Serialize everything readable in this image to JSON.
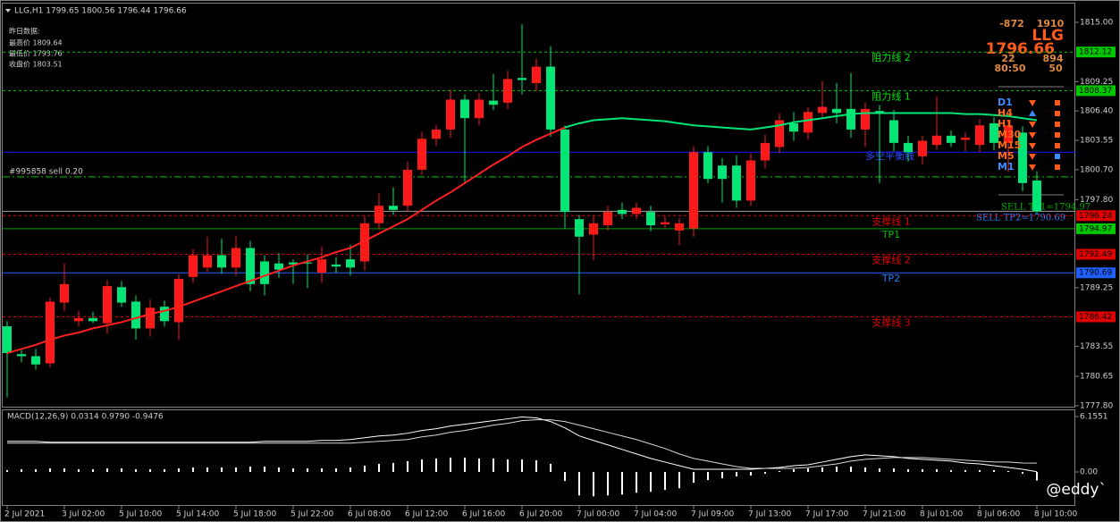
{
  "chart_data": [
    {
      "type": "candlestick",
      "title": "LLG,H1 1799.65 1800.56 1796.44 1796.66",
      "categories": [
        "2 Jul 2021",
        null,
        null,
        null,
        "3 Jul 02:00",
        null,
        null,
        null,
        "5 Jul 10:00",
        null,
        null,
        null,
        "5 Jul 14:00",
        null,
        null,
        null,
        "5 Jul 18:00",
        null,
        null,
        null,
        "5 Jul 22:00",
        null,
        null,
        null,
        "6 Jul 08:00",
        null,
        null,
        null,
        "6 Jul 12:00",
        null,
        null,
        null,
        "6 Jul 16:00",
        null,
        null,
        null,
        "6 Jul 20:00",
        null,
        null,
        null,
        "7 Jul 00:00",
        null,
        null,
        null,
        "7 Jul 04:00",
        null,
        null,
        null,
        "7 Jul 09:00",
        null,
        null,
        null,
        "7 Jul 13:00",
        null,
        null,
        null,
        "7 Jul 17:00",
        null,
        null,
        null,
        "7 Jul 21:00",
        null,
        null,
        null,
        "8 Jul 01:00",
        null,
        null,
        null,
        "8 Jul 06:00",
        null,
        null,
        null,
        "8 Jul 10:00"
      ],
      "open": [
        1785.5,
        1782.8,
        1782.6,
        1781.9,
        1787.8,
        1786.0,
        1786.3,
        1785.8,
        1789.3,
        1787.9,
        1785.3,
        1787.4,
        1785.9,
        1790.3,
        1791.2,
        1792.4,
        1791.2,
        1793.1,
        1791.8,
        1791.6,
        1791.7,
        1791.7,
        1790.7,
        1791.5,
        1792.0,
        1791.8,
        1795.5,
        1797.2,
        1797.2,
        1800.7,
        1803.7,
        1804.6,
        1807.5,
        1805.7,
        1807.4,
        1807.2,
        1809.6,
        1809.1,
        1810.7,
        1804.6,
        1795.9,
        1794.4,
        1795.3,
        1796.8,
        1796.4,
        1796.6,
        1795.4,
        1794.8,
        1795.0,
        1802.4,
        1801.1,
        1801.1,
        1797.7,
        1801.6,
        1802.9,
        1805.2,
        1804.3,
        1806.2,
        1806.6,
        1806.6,
        1804.6,
        1806.4,
        1805.5,
        1803.3,
        1802.0,
        1803.1,
        1804.0,
        1803.6,
        1803.1,
        1805.2,
        1803.3,
        1804.3,
        1799.65
      ],
      "high": [
        1786.0,
        1783.3,
        1783.3,
        1788.3,
        1791.6,
        1787.0,
        1786.9,
        1790.0,
        1789.9,
        1788.5,
        1788.1,
        1788.0,
        1790.6,
        1793.0,
        1794.2,
        1794.0,
        1794.3,
        1793.8,
        1792.4,
        1792.6,
        1792.0,
        1792.5,
        1793.2,
        1792.2,
        1793.4,
        1796.2,
        1798.4,
        1799.0,
        1801.5,
        1804.4,
        1805.0,
        1808.5,
        1808.0,
        1808.1,
        1810.0,
        1810.3,
        1814.8,
        1811.5,
        1812.7,
        1805.0,
        1796.3,
        1796.2,
        1797.2,
        1797.5,
        1797.5,
        1797.2,
        1796.2,
        1796.0,
        1803.0,
        1803.0,
        1801.8,
        1802.1,
        1802.3,
        1804.1,
        1806.2,
        1806.3,
        1806.8,
        1809.3,
        1809.1,
        1810.1,
        1807.2,
        1807.0,
        1806.5,
        1804.0,
        1804.0,
        1807.8,
        1804.5,
        1804.3,
        1805.6,
        1805.8,
        1805.5,
        1804.9,
        1800.56
      ],
      "low": [
        1778.6,
        1782.0,
        1781.3,
        1781.5,
        1787.0,
        1785.5,
        1785.8,
        1784.8,
        1787.4,
        1784.2,
        1784.5,
        1785.5,
        1784.2,
        1789.7,
        1790.8,
        1790.6,
        1790.4,
        1788.9,
        1788.5,
        1790.2,
        1789.6,
        1789.2,
        1789.7,
        1790.7,
        1790.4,
        1790.9,
        1794.9,
        1796.3,
        1796.6,
        1800.2,
        1803.0,
        1803.8,
        1799.5,
        1805.0,
        1806.5,
        1806.6,
        1808.0,
        1808.3,
        1803.9,
        1795.0,
        1788.6,
        1791.9,
        1794.8,
        1795.9,
        1795.9,
        1794.7,
        1795.0,
        1793.4,
        1794.2,
        1799.4,
        1797.5,
        1797.0,
        1797.2,
        1800.8,
        1802.3,
        1803.5,
        1803.6,
        1805.7,
        1805.2,
        1803.8,
        1802.9,
        1799.4,
        1802.5,
        1801.5,
        1801.2,
        1802.6,
        1802.9,
        1802.5,
        1802.4,
        1802.6,
        1800.5,
        1798.6,
        1796.44
      ],
      "close": [
        1782.9,
        1782.6,
        1781.8,
        1787.9,
        1789.6,
        1786.3,
        1786.0,
        1789.4,
        1787.8,
        1785.3,
        1787.3,
        1786.0,
        1790.1,
        1792.4,
        1792.4,
        1791.2,
        1793.1,
        1789.6,
        1789.6,
        1791.0,
        1791.5,
        1791.6,
        1792.0,
        1791.3,
        1791.2,
        1795.5,
        1797.2,
        1796.8,
        1800.7,
        1803.7,
        1804.6,
        1807.5,
        1805.7,
        1807.5,
        1807.0,
        1809.5,
        1809.4,
        1810.7,
        1804.6,
        1796.6,
        1794.2,
        1795.5,
        1796.6,
        1796.4,
        1797.0,
        1795.3,
        1795.6,
        1795.5,
        1802.4,
        1799.8,
        1799.8,
        1797.7,
        1801.6,
        1803.3,
        1805.5,
        1804.4,
        1806.3,
        1806.8,
        1806.2,
        1804.6,
        1806.6,
        1806.2,
        1803.3,
        1802.4,
        1803.5,
        1804.0,
        1803.3,
        1803.8,
        1805.0,
        1803.3,
        1805.0,
        1799.4,
        1796.66
      ],
      "up_color": "#ff1a1a",
      "down_color": "#00e676",
      "overlays": [
        {
          "color": "#ff2020",
          "values": [
            1782.9,
            1783.3,
            1783.7,
            1784.2,
            1784.6,
            1784.9,
            1785.3,
            1785.6,
            1785.9,
            1786.3,
            1786.7,
            1787.0,
            1787.4,
            1787.9,
            1788.4,
            1788.9,
            1789.4,
            1789.9,
            1790.4,
            1790.9,
            1791.4,
            1791.8,
            1792.2,
            1792.7,
            1793.1,
            1793.8,
            1794.5,
            1795.2,
            1795.9,
            1796.8,
            1797.7,
            1798.5,
            1799.4,
            1800.3,
            1801.2,
            1802.0,
            1802.9,
            1803.6,
            1804.2,
            1804.8,
            null,
            null,
            null,
            null,
            null,
            null,
            null,
            null,
            null,
            null,
            null,
            null,
            null,
            null,
            null,
            null,
            null,
            null,
            null,
            null,
            null,
            null,
            null,
            null,
            null,
            null,
            null,
            null,
            null,
            null,
            null,
            null,
            null
          ]
        },
        {
          "color": "#00e676",
          "values": [
            null,
            null,
            null,
            null,
            null,
            null,
            null,
            null,
            null,
            null,
            null,
            null,
            null,
            null,
            null,
            null,
            null,
            null,
            null,
            null,
            null,
            null,
            null,
            null,
            null,
            null,
            null,
            null,
            null,
            null,
            null,
            null,
            null,
            null,
            null,
            null,
            null,
            null,
            null,
            1804.8,
            1805.2,
            1805.5,
            1805.6,
            1805.7,
            1805.6,
            1805.5,
            1805.4,
            1805.2,
            1805.0,
            1804.9,
            1804.8,
            1804.7,
            1804.6,
            1804.8,
            1805.0,
            1805.3,
            1805.5,
            1805.7,
            1805.9,
            1806.1,
            1806.2,
            1806.2,
            1806.2,
            1806.2,
            1806.2,
            1806.2,
            1806.2,
            1806.1,
            1806.1,
            1806.0,
            1805.9,
            1805.7,
            1805.5
          ]
        }
      ],
      "ylim": [
        1777.7,
        1816.3
      ],
      "yticks": [
        {
          "value": 1815,
          "label": "1815.00"
        },
        1809.25,
        {
          "value": 1806.4,
          "label": "1806.40"
        },
        1803.55,
        {
          "value": 1800.7,
          "label": "1800.70"
        },
        {
          "value": 1797.8,
          "label": "1797.80"
        },
        1789.25,
        1783.55,
        1780.65,
        {
          "value": 1777.8,
          "label": "1777.80"
        }
      ],
      "levels": [
        {
          "value": 1812.12,
          "color": "#00c800",
          "style": "dashed",
          "label": "阻力线 2",
          "label_color": "#00e000",
          "box": "#00c800"
        },
        {
          "value": 1808.37,
          "color": "#00c800",
          "style": "dashed",
          "label": "阻力线 1",
          "label_color": "#00e000",
          "box": "#00c800"
        },
        {
          "value": 1802.4,
          "color": "#1a1aff",
          "style": "solid"
        },
        {
          "value": 1800.0,
          "color": "#00c800",
          "style": "dashdot",
          "label": "#995858 sell 0.20",
          "label_color": "#d0d0d0",
          "label_left": true
        },
        {
          "value": 1796.66,
          "color": "#a0a0a0",
          "style": "solid"
        },
        {
          "value": 1796.24,
          "color": "#e00000",
          "style": "dashed",
          "label": "支撑线 1",
          "label_color": "#e00000",
          "box": "#e00000"
        },
        {
          "value": 1794.97,
          "color": "#00a000",
          "style": "solid",
          "label": "TP1",
          "label_color": "#00c000",
          "box": "#00c800"
        },
        {
          "value": 1792.49,
          "color": "#e00000",
          "style": "dashed",
          "label": "支撑线 2",
          "label_color": "#e00000",
          "box": "#e00000"
        },
        {
          "value": 1790.69,
          "color": "#2060ff",
          "style": "solid",
          "label": "TP2",
          "label_color": "#2080ff",
          "box": "#2060ff"
        },
        {
          "value": 1786.42,
          "color": "#e00000",
          "style": "dashed",
          "label": "支撑线 3",
          "label_color": "#e00000",
          "box": "#e00000"
        }
      ],
      "yesterday": {
        "heading": "昨日数据:",
        "lines": [
          "最高价 1809.64",
          "最低价 1793.76",
          "收盘价 1803.51"
        ]
      },
      "panel": {
        "small": [
          "-872",
          "1910",
          "22",
          "894",
          "80:50",
          "50"
        ],
        "symbol": "LLG",
        "price": "1796.66"
      },
      "balance_label": "多空平衡线",
      "tp_notes": [
        {
          "text": "SELL TP1=1794.97",
          "color": "#00b000"
        },
        {
          "text": "SELL TP2=1790.69",
          "color": "#3a7cff"
        }
      ],
      "signals": [
        {
          "label": "D1",
          "color": "#3a8cff",
          "arrow": "down",
          "arrow_color": "#ff5a1a",
          "square": "#ff5a1a"
        },
        {
          "label": "H4",
          "color": "#ff6a1a",
          "arrow": "up",
          "arrow_color": "#3a8cff",
          "square": "#ff5a1a"
        },
        {
          "label": "H1",
          "color": "#ff6a1a",
          "arrow": "down",
          "arrow_color": "#ff5a1a",
          "square": "#ff5a1a"
        },
        {
          "label": "M30",
          "color": "#ff6a1a",
          "arrow": "down",
          "arrow_color": "#ff5a1a",
          "square": "#ff5a1a"
        },
        {
          "label": "M15",
          "color": "#ff6a1a",
          "arrow": "down",
          "arrow_color": "#ff5a1a",
          "square": "#ff5a1a"
        },
        {
          "label": "M5",
          "color": "#ff6a1a",
          "arrow": "down",
          "arrow_color": "#ff5a1a",
          "square": "#3a8cff"
        },
        {
          "label": "M1",
          "color": "#3a8cff",
          "arrow": "down",
          "arrow_color": "#ff5a1a",
          "square": "#ff5a1a"
        }
      ],
      "watermark": "@eddy`"
    },
    {
      "type": "macd",
      "title": "MACD(12,26,9) 0.0314 0.9790 -0.9476",
      "values": [
        0.2,
        0.3,
        0.3,
        0.4,
        0.4,
        0.3,
        0.3,
        0.4,
        0.4,
        0.3,
        0.3,
        0.3,
        0.4,
        0.5,
        0.5,
        0.5,
        0.5,
        0.6,
        0.6,
        0.5,
        0.4,
        0.4,
        0.4,
        0.4,
        0.5,
        0.7,
        0.9,
        1.0,
        1.2,
        1.4,
        1.5,
        1.6,
        1.6,
        1.5,
        1.5,
        1.4,
        1.4,
        1.3,
        0.9,
        -1.0,
        -2.6,
        -2.7,
        -2.6,
        -2.5,
        -2.3,
        -2.2,
        -2.0,
        -1.8,
        -1.2,
        -0.9,
        -0.7,
        -0.5,
        -0.4,
        -0.2,
        0.1,
        0.3,
        0.4,
        0.5,
        0.6,
        0.6,
        0.5,
        0.4,
        0.4,
        0.3,
        0.3,
        0.3,
        0.2,
        0.2,
        0.2,
        0.2,
        0.1,
        -0.2,
        -0.9476
      ],
      "color": "#ffffff",
      "lines": [
        {
          "color": "#ffffff",
          "values": [
            3.4,
            3.4,
            3.4,
            3.3,
            3.3,
            3.3,
            3.3,
            3.3,
            3.3,
            3.3,
            3.3,
            3.3,
            3.3,
            3.3,
            3.3,
            3.3,
            3.3,
            3.3,
            3.4,
            3.4,
            3.4,
            3.4,
            3.5,
            3.5,
            3.6,
            3.8,
            4.0,
            4.1,
            4.3,
            4.6,
            4.8,
            5.1,
            5.3,
            5.5,
            5.7,
            5.9,
            6.1,
            6.0,
            5.6,
            4.9,
            4.0,
            3.5,
            3.0,
            2.5,
            2.0,
            1.5,
            1.1,
            0.7,
            0.3,
            0.3,
            0.3,
            0.3,
            0.3,
            0.4,
            0.5,
            0.7,
            0.8,
            1.1,
            1.4,
            1.7,
            1.9,
            1.8,
            1.7,
            1.5,
            1.4,
            1.3,
            1.2,
            1.0,
            0.9,
            0.7,
            0.5,
            0.3,
            0.0314
          ]
        },
        {
          "color": "#d8d8d8",
          "values": [
            3.2,
            3.2,
            3.2,
            3.2,
            3.2,
            3.2,
            3.2,
            3.2,
            3.2,
            3.2,
            3.2,
            3.2,
            3.2,
            3.2,
            3.2,
            3.2,
            3.2,
            3.2,
            3.2,
            3.2,
            3.2,
            3.2,
            3.2,
            3.2,
            3.2,
            3.3,
            3.4,
            3.5,
            3.6,
            3.9,
            4.1,
            4.4,
            4.6,
            4.9,
            5.2,
            5.4,
            5.7,
            5.8,
            5.8,
            5.6,
            5.2,
            4.8,
            4.4,
            4.0,
            3.6,
            3.1,
            2.6,
            2.0,
            1.5,
            1.2,
            0.9,
            0.6,
            0.4,
            0.4,
            0.4,
            0.4,
            0.5,
            0.7,
            0.9,
            1.2,
            1.4,
            1.5,
            1.6,
            1.6,
            1.6,
            1.5,
            1.4,
            1.3,
            1.2,
            1.1,
            1.1,
            1.0,
            0.979
          ]
        }
      ],
      "ylim": [
        -3.67,
        6.75
      ],
      "yticks": [
        6.1551,
        {
          "value": 0,
          "label": "0.00"
        }
      ]
    }
  ]
}
